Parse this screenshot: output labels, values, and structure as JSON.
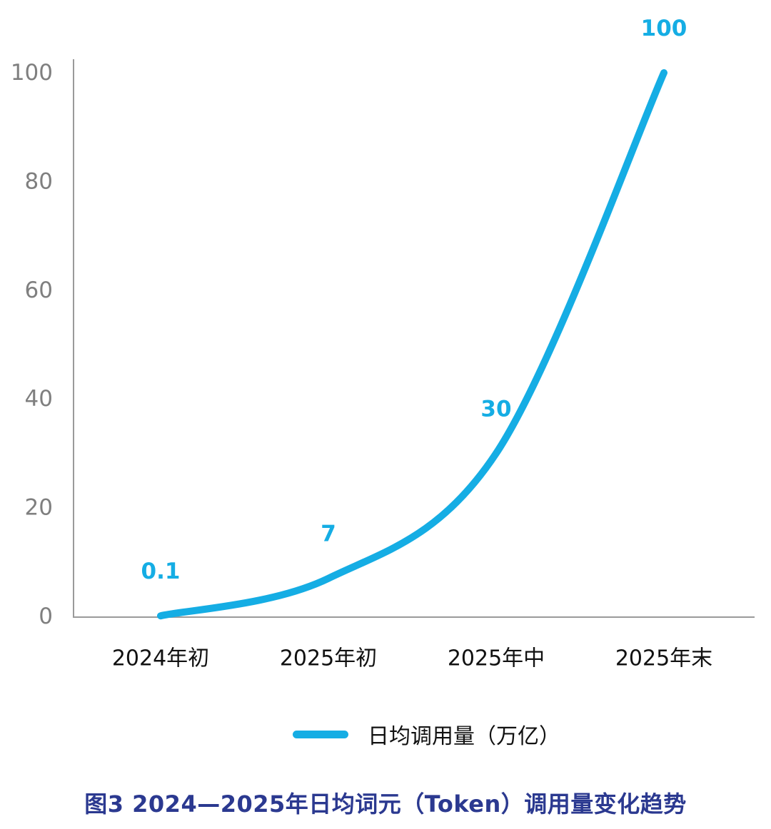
{
  "chart_data": {
    "type": "line",
    "title": "",
    "categories": [
      "2024年初",
      "2025年初",
      "2025年中",
      "2025年末"
    ],
    "series": [
      {
        "name": "日均调用量（万亿）",
        "values": [
          0.1,
          7,
          30,
          100
        ]
      }
    ],
    "point_labels": [
      "0.1",
      "7",
      "30",
      "100"
    ],
    "yticks": [
      "0",
      "20",
      "40",
      "60",
      "80",
      "100"
    ],
    "ylim": [
      0,
      100
    ],
    "xlabel": "",
    "ylabel": "",
    "grid": false,
    "smooth": true,
    "legend_position": "bottom"
  },
  "legend": {
    "series_label": "日均调用量（万亿）"
  },
  "caption": {
    "text": "图3 2024—2025年日均词元（Token）调用量变化趋势"
  },
  "colors": {
    "line": "#15ADE4",
    "data_label": "#15ADE4",
    "caption": "#2B3990",
    "axis": "#9A9A9A",
    "ytick_text": "#7F7F7F",
    "xtick_text": "#111111",
    "legend_text": "#111111",
    "background": "#FFFFFF"
  }
}
